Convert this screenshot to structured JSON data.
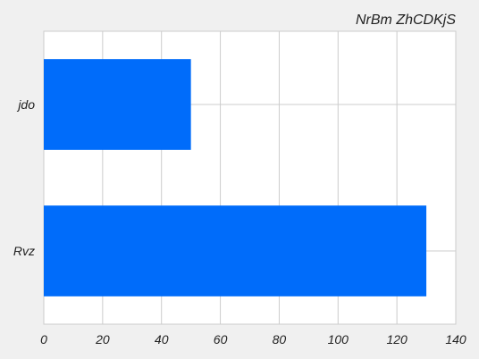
{
  "chart_data": {
    "type": "bar",
    "orientation": "horizontal",
    "title": "NrBm ZhCDKjS",
    "title_position": "top-right",
    "categories": [
      "jdo",
      "Rvz"
    ],
    "values": [
      50,
      130
    ],
    "xlim": [
      0,
      140
    ],
    "xticks": [
      0,
      20,
      40,
      60,
      80,
      100,
      120,
      140
    ],
    "grid": true,
    "bar_color": "#006cfa",
    "plot_background": "#ffffff",
    "figure_background": "#f0f0f0",
    "grid_color": "#cccccc"
  }
}
